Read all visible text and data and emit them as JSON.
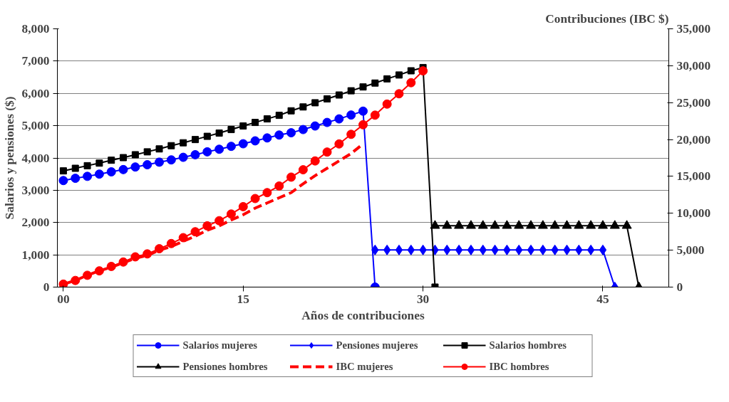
{
  "chart_data": {
    "type": "line",
    "xlabel": "Años de contribuciones",
    "ylabel": "Salarios y pensiones ($)",
    "y2label": "Contribuciones (IBC $)",
    "xlim": [
      -0.5,
      50.5
    ],
    "xticks": [
      {
        "value": 0,
        "label": "00"
      },
      15,
      30,
      45
    ],
    "ylim": [
      0,
      8000
    ],
    "yticks": [
      0,
      {
        "value": 1000,
        "label": "1,000"
      },
      {
        "value": 2000,
        "label": "2,000"
      },
      {
        "value": 3000,
        "label": "3,000"
      },
      {
        "value": 4000,
        "label": "4,000"
      },
      {
        "value": 5000,
        "label": "5,000"
      },
      {
        "value": 6000,
        "label": "6,000"
      },
      {
        "value": 7000,
        "label": "7,000"
      },
      {
        "value": 8000,
        "label": "8,000"
      }
    ],
    "y2lim": [
      0,
      35000
    ],
    "y2ticks": [
      0,
      {
        "value": 5000,
        "label": "5,000"
      },
      {
        "value": 10000,
        "label": "10,000"
      },
      {
        "value": 15000,
        "label": "15,000"
      },
      {
        "value": 20000,
        "label": "20,000"
      },
      {
        "value": 25000,
        "label": "25,000"
      },
      {
        "value": 30000,
        "label": "30,000"
      },
      {
        "value": 35000,
        "label": "35,000"
      }
    ],
    "grid": "y",
    "legend": "bottom",
    "line_style": "solid",
    "series": [
      {
        "name": "Salarios mujeres",
        "color": "#0000ff",
        "marker": "circle",
        "x": [
          0,
          1,
          2,
          3,
          4,
          5,
          6,
          7,
          8,
          9,
          10,
          11,
          12,
          13,
          14,
          15,
          16,
          17,
          18,
          19,
          20,
          21,
          22,
          23,
          24,
          25,
          26
        ],
        "values": [
          3300,
          3370,
          3430,
          3500,
          3570,
          3640,
          3720,
          3790,
          3870,
          3940,
          4020,
          4100,
          4190,
          4270,
          4360,
          4440,
          4530,
          4620,
          4710,
          4780,
          4880,
          4990,
          5100,
          5210,
          5330,
          5450,
          0
        ]
      },
      {
        "name": "Pensiones mujeres",
        "color": "#0000ff",
        "marker": "diamond",
        "x": [
          26,
          27,
          28,
          29,
          30,
          31,
          32,
          33,
          34,
          35,
          36,
          37,
          38,
          39,
          40,
          41,
          42,
          43,
          44,
          45,
          46
        ],
        "values": [
          1150,
          1150,
          1150,
          1150,
          1150,
          1150,
          1150,
          1150,
          1150,
          1150,
          1150,
          1150,
          1150,
          1150,
          1150,
          1150,
          1150,
          1150,
          1150,
          1150,
          0
        ]
      },
      {
        "name": "Salarios hombres",
        "color": "#000000",
        "marker": "square",
        "x": [
          0,
          1,
          2,
          3,
          4,
          5,
          6,
          7,
          8,
          9,
          10,
          11,
          12,
          13,
          14,
          15,
          16,
          17,
          18,
          19,
          20,
          21,
          22,
          23,
          24,
          25,
          26,
          27,
          28,
          29,
          30,
          31
        ],
        "values": [
          3600,
          3680,
          3760,
          3840,
          3930,
          4010,
          4100,
          4190,
          4280,
          4380,
          4470,
          4570,
          4670,
          4770,
          4880,
          4990,
          5100,
          5210,
          5320,
          5460,
          5580,
          5710,
          5830,
          5950,
          6080,
          6200,
          6320,
          6450,
          6570,
          6700,
          6800,
          0
        ]
      },
      {
        "name": "Pensiones hombres",
        "color": "#000000",
        "marker": "triangle",
        "x": [
          31,
          32,
          33,
          34,
          35,
          36,
          37,
          38,
          39,
          40,
          41,
          42,
          43,
          44,
          45,
          46,
          47,
          48
        ],
        "values": [
          1900,
          1900,
          1900,
          1900,
          1900,
          1900,
          1900,
          1900,
          1900,
          1900,
          1900,
          1900,
          1900,
          1900,
          1900,
          1900,
          1900,
          0
        ]
      },
      {
        "name": "IBC mujeres",
        "color": "#ff0000",
        "marker": "none",
        "line_style": "dashed",
        "axis": "y2",
        "x": [
          0,
          1,
          2,
          3,
          4,
          5,
          6,
          7,
          8,
          9,
          10,
          11,
          12,
          13,
          14,
          15,
          16,
          17,
          18,
          19,
          20,
          21,
          22,
          23,
          24,
          25
        ],
        "values": [
          400,
          900,
          1600,
          2200,
          2700,
          3300,
          3900,
          4300,
          5000,
          5500,
          6200,
          6900,
          7700,
          8300,
          9100,
          9800,
          10700,
          11400,
          12100,
          12800,
          14000,
          15100,
          16100,
          17100,
          18100,
          19400
        ]
      },
      {
        "name": "IBC hombres",
        "color": "#ff0000",
        "marker": "circle",
        "axis": "y2",
        "x": [
          0,
          1,
          2,
          3,
          4,
          5,
          6,
          7,
          8,
          9,
          10,
          11,
          12,
          13,
          14,
          15,
          16,
          17,
          18,
          19,
          20,
          21,
          22,
          23,
          24,
          25,
          26,
          27,
          28,
          29,
          30
        ],
        "values": [
          400,
          900,
          1600,
          2200,
          2800,
          3400,
          4100,
          4500,
          5200,
          5900,
          6700,
          7500,
          8300,
          9000,
          9900,
          10900,
          12000,
          12800,
          13700,
          14900,
          15900,
          17100,
          18300,
          19400,
          20700,
          22000,
          23300,
          24800,
          26200,
          27700,
          29300
        ]
      }
    ]
  }
}
